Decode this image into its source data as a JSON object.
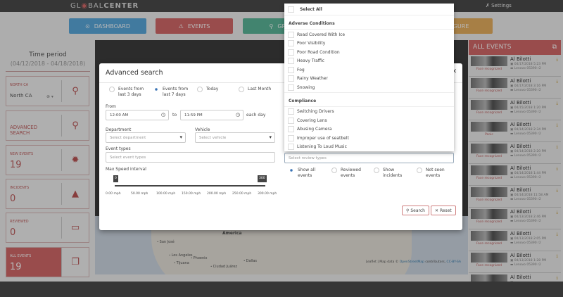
{
  "header": {
    "logo": "GL⊙BALCENTER",
    "logo_prefix": "GL",
    "logo_mid": "◉BAL",
    "logo_bold": "CENTER",
    "settings": "Settings"
  },
  "nav": [
    {
      "label": "DASHBOARD",
      "color": "#5aa9dd",
      "icon": "dashboard-icon"
    },
    {
      "label": "EVENTS",
      "color": "#d46a6a",
      "icon": "warning-icon"
    },
    {
      "label": "GPS-T",
      "color": "#5cb89a",
      "icon": "map-marker-icon"
    },
    {
      "label": "FIGURE",
      "color": "#e8b060",
      "icon": "configure-icon"
    }
  ],
  "sidebar": {
    "time_period_title": "Time period",
    "time_period_range": "(04/12/2018 - 04/18/2018)",
    "cards": [
      {
        "label": "NORTH CA",
        "value": "North CA",
        "icon": "map-marker-icon"
      },
      {
        "label": "ADVANCED SEARCH",
        "value": "",
        "icon": "search-icon"
      },
      {
        "label": "NEW EVENTS",
        "value": "19",
        "icon": "alert-badge-icon"
      },
      {
        "label": "INCIDENTS",
        "value": "0",
        "icon": "warning-icon"
      },
      {
        "label": "REVIEWED",
        "value": "0",
        "icon": "monitor-icon"
      },
      {
        "label": "ALL EVENTS",
        "value": "19",
        "icon": "folders-icon"
      }
    ]
  },
  "map": {
    "labels": [
      "America",
      "San José",
      "Los Angeles",
      "Phoenix",
      "Tijuana",
      "Ciudad Juárez",
      "Dallas"
    ],
    "attribution_prefix": "Leaflet | Map data © ",
    "attribution_link": "OpenStreetMap",
    "attribution_suffix": " contributors, ",
    "license": "CC-BY-SA"
  },
  "events_panel": {
    "title": "ALL EVENTS",
    "events": [
      {
        "name": "Al Bilotti",
        "tag": "Face recognized",
        "date": "04/17/2018 5:23 PM",
        "vehicle": "Lenovo 05390 r2"
      },
      {
        "name": "Al Bilotti",
        "tag": "Face recognized",
        "date": "04/17/2018 3:16 PM",
        "vehicle": "Lenovo 05390 r2"
      },
      {
        "name": "Al Bilotti",
        "tag": "Face recognized",
        "date": "04/15/2018 1:20 PM",
        "vehicle": "Lenovo 05390 r2"
      },
      {
        "name": "Al Bilotti",
        "tag": "Panic",
        "date": "04/14/2018 2:34 PM",
        "vehicle": "Lenovo 05390 r2"
      },
      {
        "name": "Al Bilotti",
        "tag": "Face recognized",
        "date": "04/14/2018 2:20 PM",
        "vehicle": "Lenovo 05390 r2"
      },
      {
        "name": "Al Bilotti",
        "tag": "Face recognized",
        "date": "04/14/2018 1:44 PM",
        "vehicle": "Lenovo 05390 r2"
      },
      {
        "name": "Al Bilotti",
        "tag": "Face recognized",
        "date": "04/14/2018 11:58 AM",
        "vehicle": "Lenovo 05390 r2"
      },
      {
        "name": "Al Bilotti",
        "tag": "Face recognized",
        "date": "04/13/2018 2:46 PM",
        "vehicle": "Lenovo 05390 r2"
      },
      {
        "name": "Al Bilotti",
        "tag": "Face recognized",
        "date": "04/13/2018 2:05 PM",
        "vehicle": "Lenovo 05390 r2"
      },
      {
        "name": "Al Bilotti",
        "tag": "Face recognized",
        "date": "04/13/2018 1:28 PM",
        "vehicle": "Lenovo 05390 r2"
      },
      {
        "name": "Al Bilotti",
        "tag": "",
        "date": "",
        "vehicle": ""
      }
    ]
  },
  "modal": {
    "title": "Advanced search",
    "periods": [
      {
        "label": "Events from last 3 days",
        "selected": false
      },
      {
        "label": "Events from last 7 days",
        "selected": true
      },
      {
        "label": "Today",
        "selected": false
      },
      {
        "label": "Last Month",
        "selected": false
      }
    ],
    "from_label": "From",
    "from_value": "12:00 AM",
    "to_label": "to",
    "to_value": "11:59 PM",
    "each_day": "each day",
    "department_label": "Department",
    "department_placeholder": "Select department",
    "vehicle_label": "Vehicle",
    "vehicle_placeholder": "Select vehicle",
    "event_types_label": "Event types",
    "event_types_placeholder": "Select event types",
    "speed_label": "Max Speed interval",
    "speed_min": "0",
    "speed_max": "300",
    "speed_ticks": [
      "0.00 mph",
      "50.00 mph",
      "100.00 mph",
      "150.00 mph",
      "200.00 mph",
      "250.00 mph",
      "300.00 mph"
    ],
    "review_placeholder": "Select review types",
    "filters": [
      {
        "label": "Show all events",
        "selected": true
      },
      {
        "label": "Reviewed events",
        "selected": false
      },
      {
        "label": "Show incidents",
        "selected": false
      },
      {
        "label": "Not seen events",
        "selected": false
      }
    ],
    "search_button": "Search",
    "reset_button": "Reset"
  },
  "dropdown": {
    "select_all": "Select All",
    "groups": [
      {
        "title": "Adverse Conditions",
        "items": [
          "Road Covered With Ice",
          "Poor Visibility",
          "Poor Road Condition",
          "Heavy Traffic",
          "Fog",
          "Rainy Weather",
          "Snowing"
        ]
      },
      {
        "title": "Compliance",
        "items": [
          "Switching Drivers",
          "Covering Lens",
          "Abusing Camera",
          "Improper use of seatbelt",
          "Listening To Loud Music"
        ]
      }
    ]
  }
}
